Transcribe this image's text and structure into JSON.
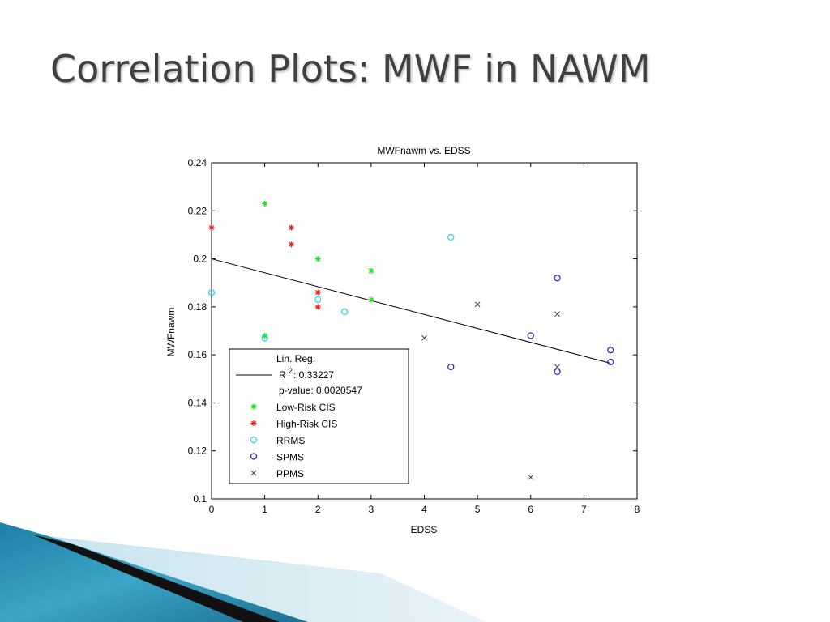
{
  "slide": {
    "title": "Correlation Plots: MWF in NAWM"
  },
  "chart_data": {
    "type": "scatter",
    "title": "MWFnawm vs. EDSS",
    "xlabel": "EDSS",
    "ylabel": "MWFnawm",
    "xlim": [
      0,
      8
    ],
    "ylim": [
      0.1,
      0.24
    ],
    "xticks": [
      0,
      1,
      2,
      3,
      4,
      5,
      6,
      7,
      8
    ],
    "yticks": [
      0.1,
      0.12,
      0.14,
      0.16,
      0.18,
      0.2,
      0.22,
      0.24
    ],
    "xtick_labels": [
      "0",
      "1",
      "2",
      "3",
      "4",
      "5",
      "6",
      "7",
      "8"
    ],
    "ytick_labels": [
      "0.1",
      "0.12",
      "0.14",
      "0.16",
      "0.18",
      "0.2",
      "0.22",
      "0.24"
    ],
    "grid": false,
    "legend_position": "bottom-left",
    "regression": {
      "label": "Lin. Reg.",
      "r2_label": "R",
      "r2_exp": "2",
      "r2_value": ": 0.33227",
      "p_label": "p-value: 0.0020547",
      "x": [
        0,
        7.5
      ],
      "y": [
        0.2,
        0.1565
      ],
      "color": "#000000"
    },
    "series": [
      {
        "name": "Low-Risk CIS",
        "marker": "asterisk",
        "color": "#22e022",
        "points": [
          [
            1,
            0.223
          ],
          [
            1,
            0.168
          ],
          [
            2,
            0.2
          ],
          [
            3,
            0.195
          ],
          [
            3,
            0.183
          ]
        ]
      },
      {
        "name": "High-Risk CIS",
        "marker": "asterisk",
        "color": "#e02020",
        "points": [
          [
            0,
            0.213
          ],
          [
            1.5,
            0.213
          ],
          [
            1.5,
            0.206
          ],
          [
            2,
            0.186
          ],
          [
            2,
            0.18
          ]
        ]
      },
      {
        "name": "RRMS",
        "marker": "circle",
        "color": "#20d8e8",
        "points": [
          [
            0,
            0.186
          ],
          [
            1,
            0.167
          ],
          [
            2,
            0.183
          ],
          [
            2.5,
            0.178
          ],
          [
            4.5,
            0.209
          ]
        ]
      },
      {
        "name": "SPMS",
        "marker": "circle",
        "color": "#2020c8",
        "points": [
          [
            4.5,
            0.155
          ],
          [
            6,
            0.168
          ],
          [
            6.5,
            0.192
          ],
          [
            6.5,
            0.153
          ],
          [
            7.5,
            0.162
          ],
          [
            7.5,
            0.157
          ]
        ]
      },
      {
        "name": "PPMS",
        "marker": "x",
        "color": "#404040",
        "points": [
          [
            4,
            0.167
          ],
          [
            5,
            0.181
          ],
          [
            6,
            0.109
          ],
          [
            6.5,
            0.177
          ],
          [
            6.5,
            0.155
          ]
        ]
      }
    ]
  }
}
